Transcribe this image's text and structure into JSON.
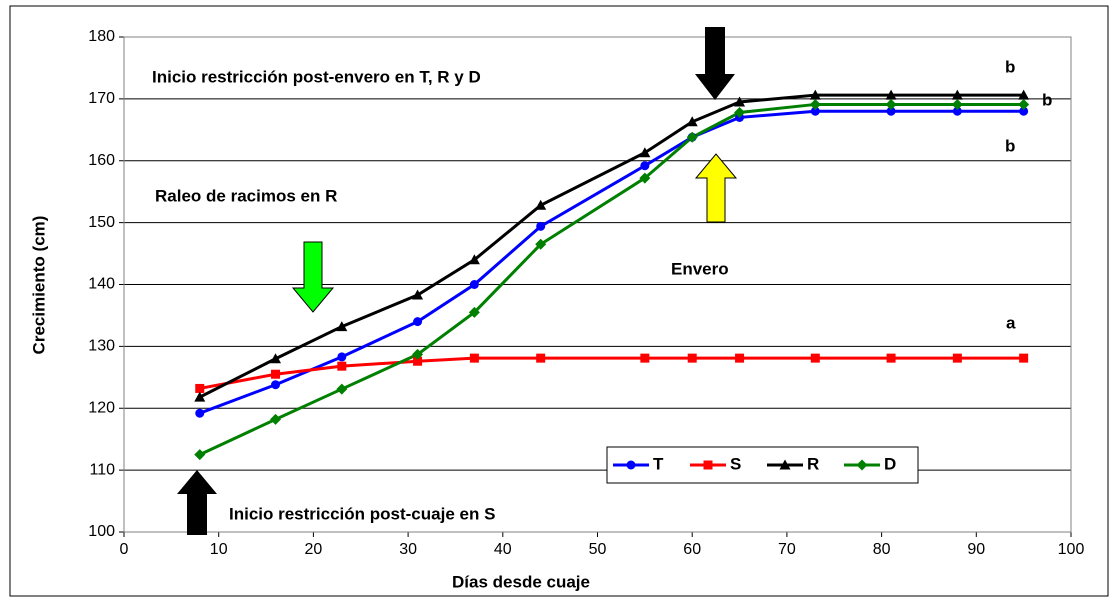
{
  "chart_data": {
    "type": "line",
    "x_label": "Días desde cuaje",
    "y_label": "Crecimiento (cm)",
    "x": [
      8,
      16,
      23,
      31,
      37,
      44,
      55,
      60,
      65,
      73,
      81,
      88,
      95
    ],
    "series": [
      {
        "name": "T",
        "color": "#0000ff",
        "marker": "circle",
        "values": [
          119.2,
          123.8,
          128.3,
          134,
          140,
          149.4,
          159.2,
          163.8,
          167,
          168,
          168,
          168,
          168
        ]
      },
      {
        "name": "S",
        "color": "#ff0000",
        "marker": "square",
        "values": [
          123.2,
          125.5,
          126.8,
          127.6,
          128.1,
          128.1,
          128.1,
          128.1,
          128.1,
          128.1,
          128.1,
          128.1,
          128.1
        ]
      },
      {
        "name": "R",
        "color": "#000000",
        "marker": "triangle",
        "values": [
          121.8,
          128,
          133.2,
          138.3,
          144,
          152.8,
          161.3,
          166.3,
          169.5,
          170.6,
          170.6,
          170.6,
          170.6
        ]
      },
      {
        "name": "D",
        "color": "#008000",
        "marker": "diamond",
        "values": [
          112.5,
          118.2,
          123.1,
          128.7,
          135.5,
          146.5,
          157.2,
          163.8,
          167.8,
          169.1,
          169.1,
          169.1,
          169.1
        ]
      }
    ],
    "xlim": [
      0,
      100
    ],
    "xticks": [
      0,
      10,
      20,
      30,
      40,
      50,
      60,
      70,
      80,
      90,
      100
    ],
    "ylim": [
      100,
      180
    ],
    "yticks": [
      100,
      110,
      120,
      130,
      140,
      150,
      160,
      170,
      180
    ],
    "grid": true,
    "annotations": [
      "Inicio restricción post-envero en T, R y D",
      "Raleo de racimos en R",
      "Envero",
      "Inicio restricción post-cuaje en S",
      "a",
      "b",
      "b",
      "b"
    ]
  }
}
